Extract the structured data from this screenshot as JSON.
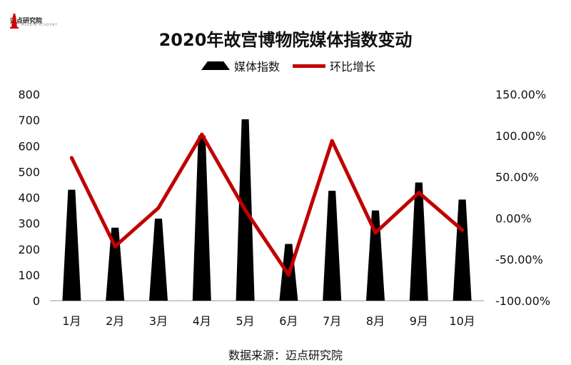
{
  "logo": {
    "text": "迈点研究院",
    "sub": "MEADIN ACADEMY"
  },
  "colors": {
    "bar": "#000000",
    "line": "#c00000",
    "axis": "#999999",
    "text": "#111111"
  },
  "chart_data": {
    "type": "bar+line",
    "title": "2020年故宫博物院媒体指数变动",
    "categories": [
      "1月",
      "2月",
      "3月",
      "4月",
      "5月",
      "6月",
      "7月",
      "8月",
      "9月",
      "10月"
    ],
    "series": [
      {
        "name": "媒体指数",
        "type": "bar",
        "axis": "left",
        "values": [
          430,
          283,
          318,
          640,
          703,
          220,
          426,
          350,
          458,
          392
        ]
      },
      {
        "name": "环比增长",
        "type": "line",
        "axis": "right",
        "values": [
          73.0,
          -34.2,
          12.4,
          101.3,
          9.8,
          -68.7,
          93.6,
          -17.8,
          30.9,
          -14.4
        ]
      }
    ],
    "y_left": {
      "min": 0,
      "max": 800,
      "step": 100,
      "ticks": [
        "0",
        "100",
        "200",
        "300",
        "400",
        "500",
        "600",
        "700",
        "800"
      ]
    },
    "y_right": {
      "min": -100,
      "max": 150,
      "step": 50,
      "ticks": [
        "-100.00%",
        "-50.00%",
        "0.00%",
        "50.00%",
        "100.00%",
        "150.00%"
      ]
    },
    "legend_position": "top-center",
    "source": "数据来源：迈点研究院"
  }
}
